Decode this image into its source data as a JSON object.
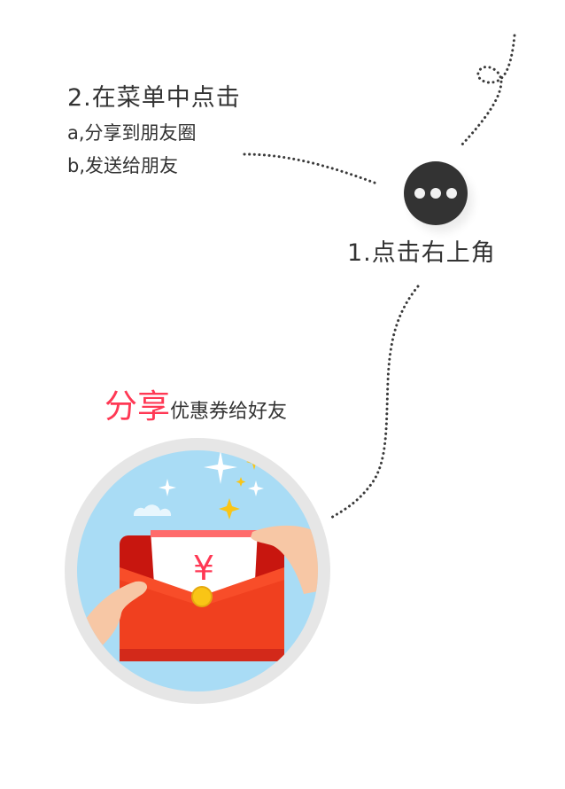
{
  "step2": {
    "title": "2.在菜单中点击",
    "option_a": "a,分享到朋友圈",
    "option_b": "b,发送给朋友"
  },
  "step1": {
    "label": "1.点击右上角"
  },
  "menu_button": {
    "icon": "more-dots-icon"
  },
  "share": {
    "highlight": "分享",
    "rest": "优惠券给好友"
  },
  "illustration": {
    "icon": "red-envelope-icon",
    "currency_symbol": "¥"
  },
  "colors": {
    "accent": "#ff3854",
    "text": "#333333",
    "envelope_red": "#e8241b",
    "sky": "#a9dcf5"
  }
}
